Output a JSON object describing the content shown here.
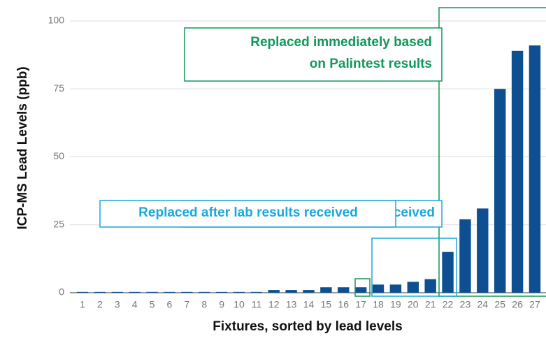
{
  "chart_data": {
    "type": "bar",
    "xlabel": "Fixtures, sorted by lead levels",
    "ylabel": "ICP-MS Lead Levels (ppb)",
    "categories": [
      "1",
      "2",
      "3",
      "4",
      "5",
      "6",
      "7",
      "8",
      "9",
      "10",
      "11",
      "12",
      "13",
      "14",
      "15",
      "16",
      "17",
      "18",
      "19",
      "20",
      "21",
      "22",
      "23",
      "24",
      "25",
      "26",
      "27"
    ],
    "values": [
      0.3,
      0.3,
      0.3,
      0.3,
      0.3,
      0.3,
      0.3,
      0.3,
      0.3,
      0.3,
      0.3,
      1,
      1,
      1,
      2,
      2,
      2,
      3,
      3,
      4,
      5,
      15,
      27,
      31,
      75,
      89,
      91
    ],
    "color": "#0d4f91",
    "ylim": [
      0,
      100
    ],
    "yticks": [
      0,
      25,
      50,
      75,
      100
    ],
    "grid": true,
    "annotations": [
      {
        "text": [
          "Replaced immediately based",
          "on Palintest results"
        ],
        "color": "#12975a"
      },
      {
        "text": "Replaced after lab results received",
        "color": "#1ba8dc"
      }
    ]
  }
}
